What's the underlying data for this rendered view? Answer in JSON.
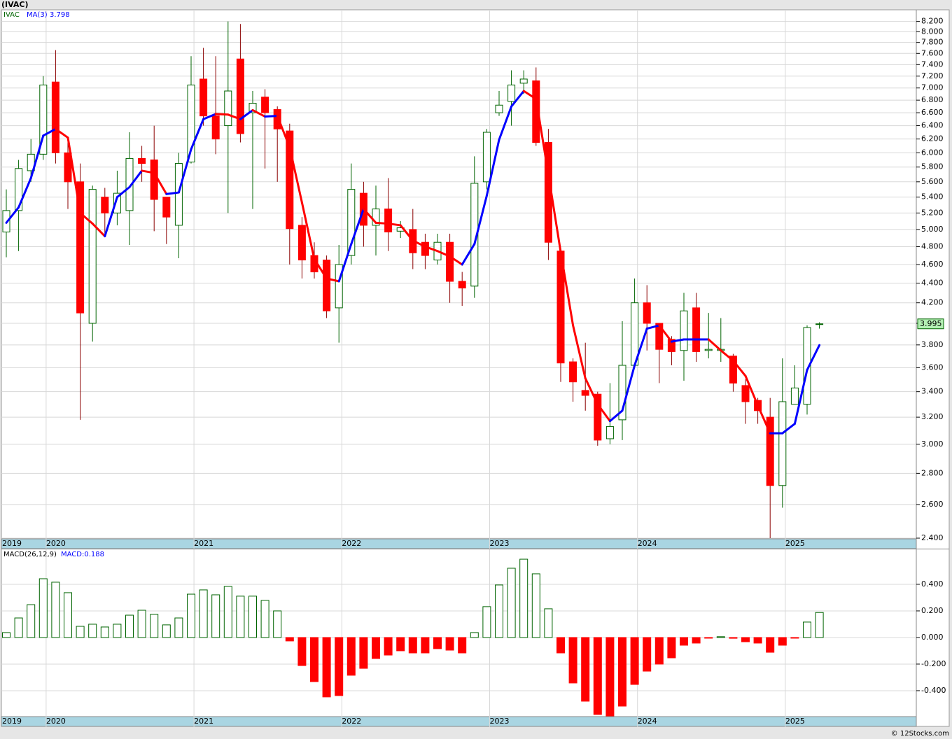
{
  "chart_data": [
    {
      "type": "candlestick",
      "title": "(IVAC)",
      "categories": [
        "2019",
        null,
        null,
        null,
        "2020",
        null,
        null,
        null,
        null,
        null,
        null,
        null,
        null,
        null,
        null,
        null,
        "2021",
        null,
        null,
        null,
        null,
        null,
        null,
        null,
        null,
        null,
        null,
        null,
        "2022",
        null,
        null,
        null,
        null,
        null,
        null,
        null,
        null,
        null,
        null,
        null,
        "2023",
        null,
        null,
        null,
        null,
        null,
        null,
        null,
        null,
        null,
        null,
        null,
        "2024",
        null,
        null,
        null,
        null,
        null,
        null,
        null,
        null,
        null,
        null,
        null,
        "2025",
        null,
        null
      ],
      "log_scale": true,
      "grid": true,
      "ylim": [
        2.4,
        8.43
      ],
      "yticks": [
        {
          "value": 2.4,
          "label": "2.400"
        },
        {
          "value": 2.6,
          "label": "2.600"
        },
        {
          "value": 2.8,
          "label": "2.800"
        },
        {
          "value": 3.0,
          "label": "3.000"
        },
        {
          "value": 3.2,
          "label": "3.200"
        },
        {
          "value": 3.4,
          "label": "3.400"
        },
        {
          "value": 3.6,
          "label": "3.600"
        },
        {
          "value": 3.8,
          "label": "3.800"
        },
        {
          "value": 4.0,
          "label": "4.000"
        },
        {
          "value": 4.2,
          "label": "4.200"
        },
        {
          "value": 4.4,
          "label": "4.400"
        },
        {
          "value": 4.6,
          "label": "4.600"
        },
        {
          "value": 4.8,
          "label": "4.800"
        },
        {
          "value": 5.0,
          "label": "5.000"
        },
        {
          "value": 5.2,
          "label": "5.200"
        },
        {
          "value": 5.4,
          "label": "5.400"
        },
        {
          "value": 5.6,
          "label": "5.600"
        },
        {
          "value": 5.8,
          "label": "5.800"
        },
        {
          "value": 6.0,
          "label": "6.000"
        },
        {
          "value": 6.2,
          "label": "6.200"
        },
        {
          "value": 6.4,
          "label": "6.400"
        },
        {
          "value": 6.6,
          "label": "6.600"
        },
        {
          "value": 6.8,
          "label": "6.800"
        },
        {
          "value": 7.0,
          "label": "7.000"
        },
        {
          "value": 7.2,
          "label": "7.200"
        },
        {
          "value": 7.4,
          "label": "7.400"
        },
        {
          "value": 7.6,
          "label": "7.600"
        },
        {
          "value": 7.8,
          "label": "7.800"
        },
        {
          "value": 8.0,
          "label": "8.000"
        },
        {
          "value": 8.2,
          "label": "8.200"
        }
      ],
      "last_price": 3.995,
      "series": [
        {
          "name": "IVAC",
          "color": "#006400",
          "up_color": "#ffffff",
          "down_color": "#ff0000",
          "open": [
            4.97,
            5.23,
            5.75,
            5.98,
            7.1,
            6.0,
            5.6,
            4.0,
            5.4,
            5.2,
            5.23,
            5.92,
            5.9,
            5.4,
            5.05,
            5.87,
            7.15,
            6.55,
            6.4,
            7.5,
            6.6,
            6.85,
            6.65,
            6.32,
            5.05,
            4.7,
            4.65,
            4.15,
            4.7,
            5.45,
            5.05,
            5.25,
            4.98,
            5.0,
            4.85,
            4.65,
            4.85,
            4.42,
            4.37,
            5.6,
            6.6,
            6.78,
            7.08,
            7.12,
            6.15,
            4.75,
            3.65,
            3.41,
            3.38,
            3.04,
            3.18,
            3.62,
            4.2,
            4.0,
            3.85,
            3.75,
            4.15,
            3.75,
            3.75,
            3.7,
            3.45,
            3.33,
            3.2,
            2.72,
            3.3,
            3.3,
            3.99
          ],
          "high": [
            5.5,
            5.9,
            6.2,
            7.2,
            7.66,
            6.2,
            5.85,
            5.55,
            5.52,
            5.75,
            6.3,
            6.1,
            6.4,
            5.4,
            6.0,
            7.55,
            7.7,
            7.55,
            8.2,
            8.15,
            6.95,
            6.98,
            6.7,
            6.43,
            5.15,
            4.85,
            4.7,
            4.82,
            5.85,
            5.6,
            5.55,
            5.65,
            5.1,
            5.25,
            4.95,
            4.95,
            4.95,
            4.52,
            5.95,
            6.35,
            6.95,
            7.3,
            7.3,
            7.35,
            6.35,
            4.8,
            3.68,
            3.82,
            3.4,
            3.47,
            4.02,
            4.45,
            4.38,
            4.0,
            3.88,
            4.3,
            4.3,
            4.1,
            4.05,
            3.72,
            3.5,
            3.35,
            3.35,
            3.68,
            3.62,
            3.98,
            4.01
          ],
          "low": [
            4.68,
            4.75,
            5.6,
            5.9,
            5.85,
            5.25,
            3.18,
            3.83,
            4.95,
            5.05,
            4.82,
            5.6,
            4.98,
            4.83,
            4.67,
            5.85,
            6.4,
            5.98,
            5.2,
            6.15,
            5.25,
            5.78,
            5.6,
            4.6,
            4.45,
            4.45,
            4.05,
            3.82,
            4.6,
            4.8,
            4.7,
            4.75,
            4.9,
            4.55,
            4.55,
            4.6,
            4.2,
            4.17,
            4.25,
            5.5,
            6.55,
            6.4,
            6.9,
            6.1,
            4.65,
            3.48,
            3.32,
            3.25,
            2.99,
            3.0,
            3.03,
            3.6,
            3.75,
            3.47,
            3.62,
            3.49,
            3.65,
            3.68,
            3.65,
            3.4,
            3.15,
            3.15,
            2.4,
            2.58,
            3.3,
            3.22,
            3.95
          ],
          "close": [
            5.23,
            5.78,
            5.98,
            7.05,
            6.0,
            5.6,
            4.1,
            5.5,
            5.2,
            5.45,
            5.92,
            5.85,
            5.37,
            5.15,
            5.85,
            7.05,
            6.55,
            6.2,
            6.95,
            6.28,
            6.75,
            6.6,
            6.35,
            5.01,
            4.65,
            4.52,
            4.12,
            4.6,
            5.5,
            5.05,
            5.25,
            4.97,
            5.02,
            4.73,
            4.7,
            4.85,
            4.42,
            4.35,
            5.58,
            6.3,
            6.72,
            7.05,
            7.15,
            6.15,
            4.85,
            3.64,
            3.48,
            3.37,
            3.03,
            3.13,
            3.62,
            4.2,
            4.0,
            3.76,
            3.74,
            4.12,
            3.74,
            3.76,
            3.76,
            3.47,
            3.32,
            3.25,
            2.72,
            3.32,
            3.43,
            3.96,
            3.995
          ]
        },
        {
          "name": "MA(3)",
          "color": "#0000ff",
          "up_color": "#0000ff",
          "down_color": "#ff0000",
          "values": [
            5.08,
            5.27,
            5.65,
            6.25,
            6.35,
            6.22,
            5.2,
            5.07,
            4.92,
            5.4,
            5.53,
            5.75,
            5.72,
            5.44,
            5.46,
            6.05,
            6.5,
            6.58,
            6.57,
            6.5,
            6.64,
            6.54,
            6.55,
            6.08,
            5.33,
            4.66,
            4.45,
            4.42,
            4.83,
            5.25,
            5.08,
            5.07,
            5.05,
            4.87,
            4.8,
            4.75,
            4.69,
            4.6,
            4.83,
            5.42,
            6.19,
            6.7,
            6.95,
            6.82,
            5.7,
            4.74,
            3.98,
            3.51,
            3.3,
            3.17,
            3.25,
            3.62,
            3.95,
            3.98,
            3.83,
            3.85,
            3.85,
            3.85,
            3.75,
            3.66,
            3.53,
            3.29,
            3.08,
            3.08,
            3.15,
            3.58,
            3.798
          ]
        }
      ]
    },
    {
      "type": "bar",
      "title": "MACD(26,12,9)",
      "legend_label": "MACD:0.188",
      "categories": [
        "2019",
        null,
        null,
        null,
        "2020",
        null,
        null,
        null,
        null,
        null,
        null,
        null,
        null,
        null,
        null,
        null,
        "2021",
        null,
        null,
        null,
        null,
        null,
        null,
        null,
        null,
        null,
        null,
        null,
        "2022",
        null,
        null,
        null,
        null,
        null,
        null,
        null,
        null,
        null,
        null,
        null,
        "2023",
        null,
        null,
        null,
        null,
        null,
        null,
        null,
        null,
        null,
        null,
        null,
        "2024",
        null,
        null,
        null,
        null,
        null,
        null,
        null,
        null,
        null,
        null,
        null,
        "2025",
        null,
        null
      ],
      "grid": true,
      "up_color": "#006400",
      "down_color": "#ff0000",
      "ylim": [
        -0.595,
        0.663
      ],
      "yticks": [
        {
          "value": -0.4,
          "label": "-0.400"
        },
        {
          "value": -0.2,
          "label": "-0.200"
        },
        {
          "value": 0,
          "label": "0.000"
        },
        {
          "value": 0.2,
          "label": "0.200"
        },
        {
          "value": 0.4,
          "label": "0.400"
        }
      ],
      "values": [
        0.037,
        0.147,
        0.247,
        0.442,
        0.416,
        0.337,
        0.084,
        0.1,
        0.079,
        0.1,
        0.168,
        0.205,
        0.174,
        0.095,
        0.147,
        0.326,
        0.358,
        0.321,
        0.384,
        0.311,
        0.311,
        0.279,
        0.2,
        -0.026,
        -0.211,
        -0.332,
        -0.447,
        -0.437,
        -0.284,
        -0.232,
        -0.158,
        -0.132,
        -0.1,
        -0.116,
        -0.116,
        -0.084,
        -0.095,
        -0.116,
        0.037,
        0.232,
        0.395,
        0.521,
        0.589,
        0.479,
        0.216,
        -0.116,
        -0.342,
        -0.479,
        -0.579,
        -0.59,
        -0.516,
        -0.353,
        -0.253,
        -0.2,
        -0.153,
        -0.058,
        -0.042,
        -0.005,
        0.006,
        -0.006,
        -0.032,
        -0.042,
        -0.111,
        -0.058,
        -0.003,
        0.116,
        0.188
      ]
    }
  ],
  "footer": "© 12Stocks.com"
}
